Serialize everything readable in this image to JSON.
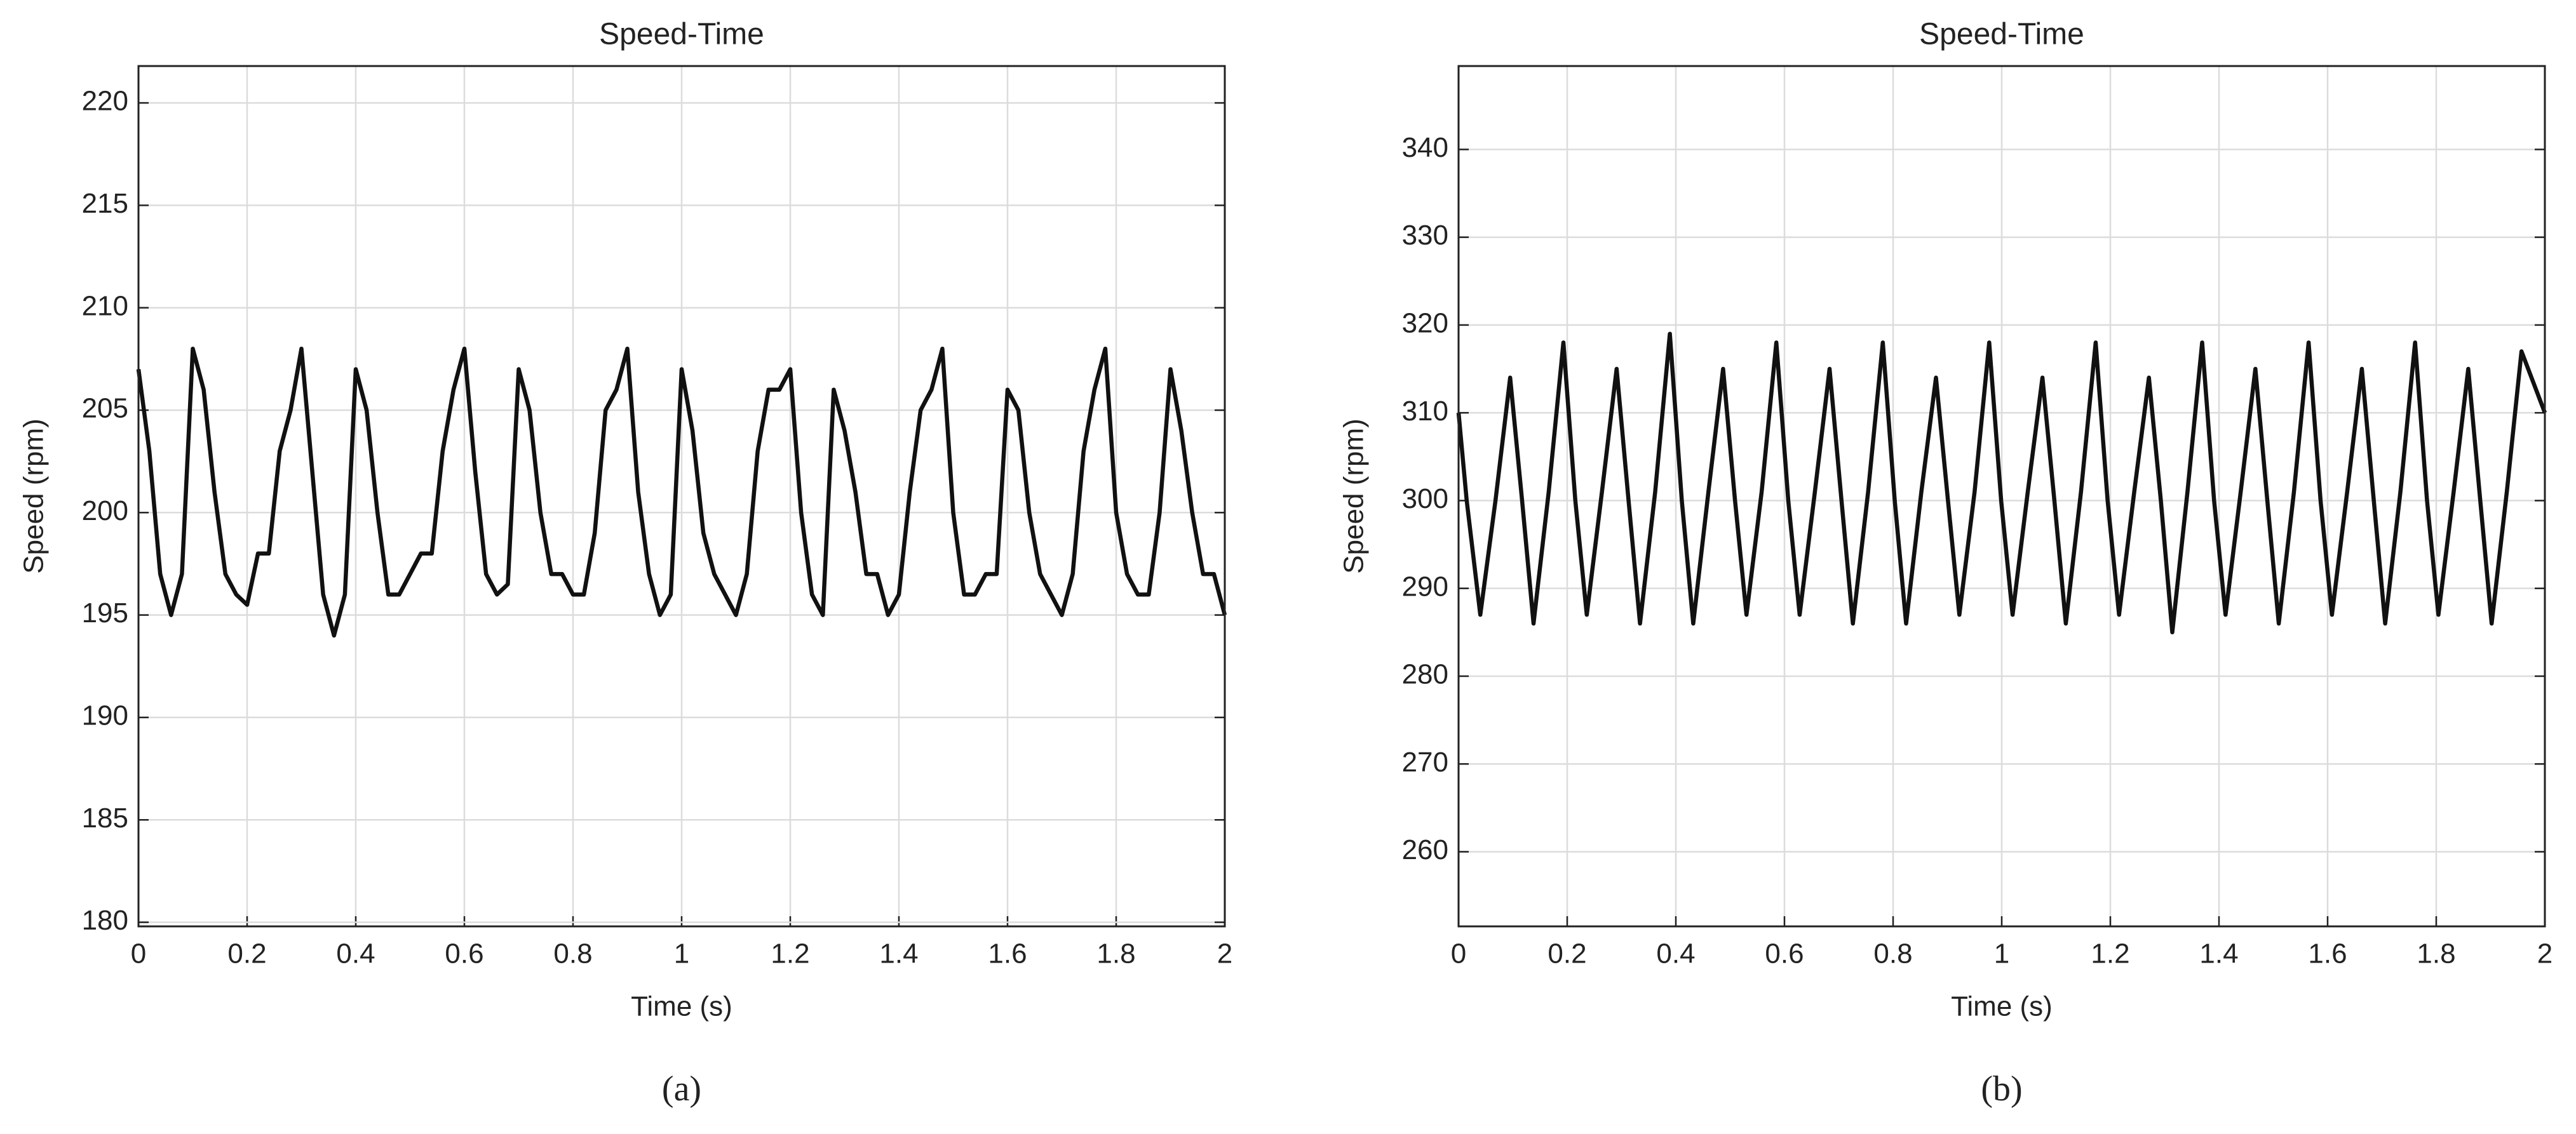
{
  "chart_data": [
    {
      "type": "line",
      "title": "Speed-Time",
      "x_label": "Time (s)",
      "y_label": "Speed (rpm)",
      "caption": "(a)",
      "xlim": [
        0,
        2
      ],
      "xticks": [
        0,
        0.2,
        0.4,
        0.6,
        0.8,
        1,
        1.2,
        1.4,
        1.6,
        1.8,
        2
      ],
      "ylim": [
        179.8,
        221.8
      ],
      "yticks": [
        180,
        185,
        190,
        195,
        200,
        205,
        210,
        215,
        220
      ],
      "grid": true,
      "x": [
        0,
        0.02,
        0.04,
        0.06,
        0.08,
        0.1,
        0.12,
        0.14,
        0.16,
        0.18,
        0.2,
        0.22,
        0.24,
        0.26,
        0.28,
        0.3,
        0.32,
        0.34,
        0.36,
        0.38,
        0.4,
        0.42,
        0.44,
        0.46,
        0.48,
        0.5,
        0.52,
        0.54,
        0.56,
        0.58,
        0.6,
        0.62,
        0.64,
        0.66,
        0.68,
        0.7,
        0.72,
        0.74,
        0.76,
        0.78,
        0.8,
        0.82,
        0.84,
        0.86,
        0.88,
        0.9,
        0.92,
        0.94,
        0.96,
        0.98,
        1,
        1.02,
        1.04,
        1.06,
        1.08,
        1.1,
        1.12,
        1.14,
        1.16,
        1.18,
        1.2,
        1.22,
        1.24,
        1.26,
        1.28,
        1.3,
        1.32,
        1.34,
        1.36,
        1.38,
        1.4,
        1.42,
        1.44,
        1.46,
        1.48,
        1.5,
        1.52,
        1.54,
        1.56,
        1.58,
        1.6,
        1.62,
        1.64,
        1.66,
        1.68,
        1.7,
        1.72,
        1.74,
        1.76,
        1.78,
        1.8,
        1.82,
        1.84,
        1.86,
        1.88,
        1.9,
        1.92,
        1.94,
        1.96,
        1.98,
        2
      ],
      "series": [
        {
          "color": "#111111",
          "values": [
            207,
            203,
            197,
            195,
            197,
            208,
            206,
            201,
            197,
            196,
            195.5,
            198,
            198,
            203,
            205,
            208,
            202,
            196,
            194,
            196,
            207,
            205,
            200,
            196,
            196,
            197,
            198,
            198,
            203,
            206,
            208,
            202,
            197,
            196,
            196.5,
            207,
            205,
            200,
            197,
            197,
            196,
            196,
            199,
            205,
            206,
            208,
            201,
            197,
            195,
            196,
            207,
            204,
            199,
            197,
            196,
            195,
            197,
            203,
            206,
            206,
            207,
            200,
            196,
            195,
            206,
            204,
            201,
            197,
            197,
            195,
            196,
            201,
            205,
            206,
            208,
            200,
            196,
            196,
            197,
            197,
            206,
            205,
            200,
            197,
            196,
            195,
            197,
            203,
            206,
            208,
            200,
            197,
            196,
            196,
            200,
            207,
            204,
            200,
            197,
            197,
            195
          ]
        }
      ]
    },
    {
      "type": "line",
      "title": "Speed-Time",
      "x_label": "Time (s)",
      "y_label": "Speed (rpm)",
      "caption": "(b)",
      "xlim": [
        0,
        2
      ],
      "xticks": [
        0,
        0.2,
        0.4,
        0.6,
        0.8,
        1,
        1.2,
        1.4,
        1.6,
        1.8,
        2
      ],
      "ylim": [
        251.5,
        349.5
      ],
      "yticks": [
        260,
        270,
        280,
        290,
        300,
        310,
        320,
        330,
        340
      ],
      "grid": true,
      "x": [
        0,
        0.015,
        0.04,
        0.068,
        0.095,
        0.117,
        0.138,
        0.166,
        0.193,
        0.215,
        0.236,
        0.264,
        0.291,
        0.313,
        0.334,
        0.362,
        0.389,
        0.411,
        0.432,
        0.46,
        0.487,
        0.509,
        0.53,
        0.558,
        0.585,
        0.607,
        0.628,
        0.656,
        0.683,
        0.705,
        0.726,
        0.754,
        0.781,
        0.803,
        0.824,
        0.852,
        0.879,
        0.901,
        0.922,
        0.95,
        0.977,
        0.999,
        1.02,
        1.048,
        1.075,
        1.097,
        1.118,
        1.146,
        1.173,
        1.195,
        1.216,
        1.244,
        1.271,
        1.293,
        1.314,
        1.342,
        1.369,
        1.391,
        1.412,
        1.44,
        1.467,
        1.489,
        1.51,
        1.538,
        1.565,
        1.587,
        1.608,
        1.636,
        1.663,
        1.685,
        1.706,
        1.734,
        1.761,
        1.783,
        1.804,
        1.832,
        1.859,
        1.881,
        1.902,
        1.93,
        1.957,
        2
      ],
      "series": [
        {
          "color": "#111111",
          "values": [
            310,
            300,
            287,
            300,
            314,
            300,
            286,
            301,
            318,
            300,
            287,
            301,
            315,
            300,
            286,
            301,
            319,
            300,
            286,
            301,
            315,
            300,
            287,
            301,
            318,
            300,
            287,
            301,
            315,
            300,
            286,
            301,
            318,
            300,
            286,
            301,
            314,
            300,
            287,
            301,
            318,
            300,
            287,
            301,
            314,
            300,
            286,
            301,
            318,
            300,
            287,
            301,
            314,
            300,
            285,
            301,
            318,
            300,
            287,
            301,
            315,
            300,
            286,
            301,
            318,
            300,
            287,
            301,
            315,
            300,
            286,
            301,
            318,
            300,
            287,
            301,
            315,
            300,
            286,
            301,
            317,
            310
          ]
        }
      ]
    }
  ]
}
